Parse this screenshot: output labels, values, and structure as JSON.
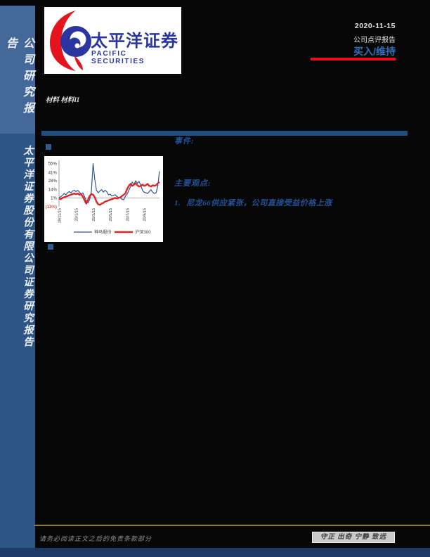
{
  "sidebar": {
    "top_label": "公司研究报告",
    "bottom_label": "太平洋证券股份有限公司证券研究报告"
  },
  "header": {
    "logo": {
      "icon": "pacific-securities-logo",
      "cn": "太平洋证券",
      "en": "PACIFIC SECURITIES"
    },
    "date": "2020-11-15",
    "report_type": "公司点评报告",
    "rating": "买入/维持"
  },
  "industry_label": "材料 材料II",
  "sections": {
    "event_label": "事件:",
    "views_label": "主要观点:",
    "points": [
      {
        "num": "1.",
        "text": "尼龙66供应紧张，公司直接受益价格上涨"
      }
    ]
  },
  "chart_data": {
    "type": "line",
    "title": "",
    "ylim": [
      -13,
      58
    ],
    "baseline": 1,
    "grid": false,
    "legend_position": "bottom",
    "y_ticks": [
      {
        "label": "55%",
        "value": 55
      },
      {
        "label": "41%",
        "value": 41
      },
      {
        "label": "28%",
        "value": 28
      },
      {
        "label": "14%",
        "value": 14
      },
      {
        "label": "1%",
        "value": 1
      },
      {
        "label": "(13%)",
        "value": -13
      }
    ],
    "x_tick_labels": [
      "19/11/15",
      "20/1/15",
      "20/3/15",
      "20/5/15",
      "20/7/15",
      "20/9/15"
    ],
    "x_tick_positions": [
      0,
      10,
      20,
      30,
      40,
      50
    ],
    "series": [
      {
        "name": "神马股份",
        "color": "#2f5597",
        "width": 1.2,
        "values": [
          1,
          3,
          5,
          8,
          6,
          9,
          11,
          9,
          12,
          13,
          11,
          13,
          10,
          7,
          9,
          3,
          -4,
          -7,
          -2,
          12,
          55,
          30,
          13,
          9,
          12,
          14,
          10,
          13,
          11,
          6,
          7,
          4,
          5,
          6,
          3,
          2,
          1,
          -1,
          -2,
          4,
          7,
          13,
          19,
          26,
          22,
          28,
          24,
          27,
          21,
          13,
          10,
          9,
          8,
          11,
          14,
          10,
          8,
          9,
          20,
          43
        ]
      },
      {
        "name": "沪深300",
        "color": "#e32222",
        "width": 2.4,
        "values": [
          0,
          -1,
          1,
          2,
          3,
          4,
          5,
          6,
          7,
          8,
          7,
          8,
          6,
          7,
          3,
          -3,
          -8,
          -2,
          4,
          7,
          6,
          2,
          -5,
          -9,
          -10,
          -8,
          -7,
          -5,
          -4,
          -3,
          -2,
          -1,
          0,
          1,
          0,
          1,
          2,
          4,
          6,
          8,
          15,
          20,
          23,
          20,
          22,
          24,
          21,
          19,
          20,
          22,
          20,
          21,
          23,
          20,
          19,
          21,
          20,
          21,
          24,
          26
        ]
      }
    ],
    "negative_tick_color": "#c00000"
  },
  "footer": {
    "disclaimer": "请务必阅读正文之后的免责条款部分",
    "motto": "守正 出奇 宁静 致远"
  },
  "colors": {
    "sidebar_top": "#44689a",
    "sidebar_bottom": "#2d5585",
    "accent_blue": "#24539b",
    "rating_blue": "#2e6fb7",
    "rating_underline_red": "#e60f16",
    "divider_blue": "#1f5083",
    "footer_gold": "#8a7b42",
    "logo_blue": "#2a35a0",
    "logo_red": "#e5131e",
    "bottom_strip_navy": "#1d3a67"
  }
}
